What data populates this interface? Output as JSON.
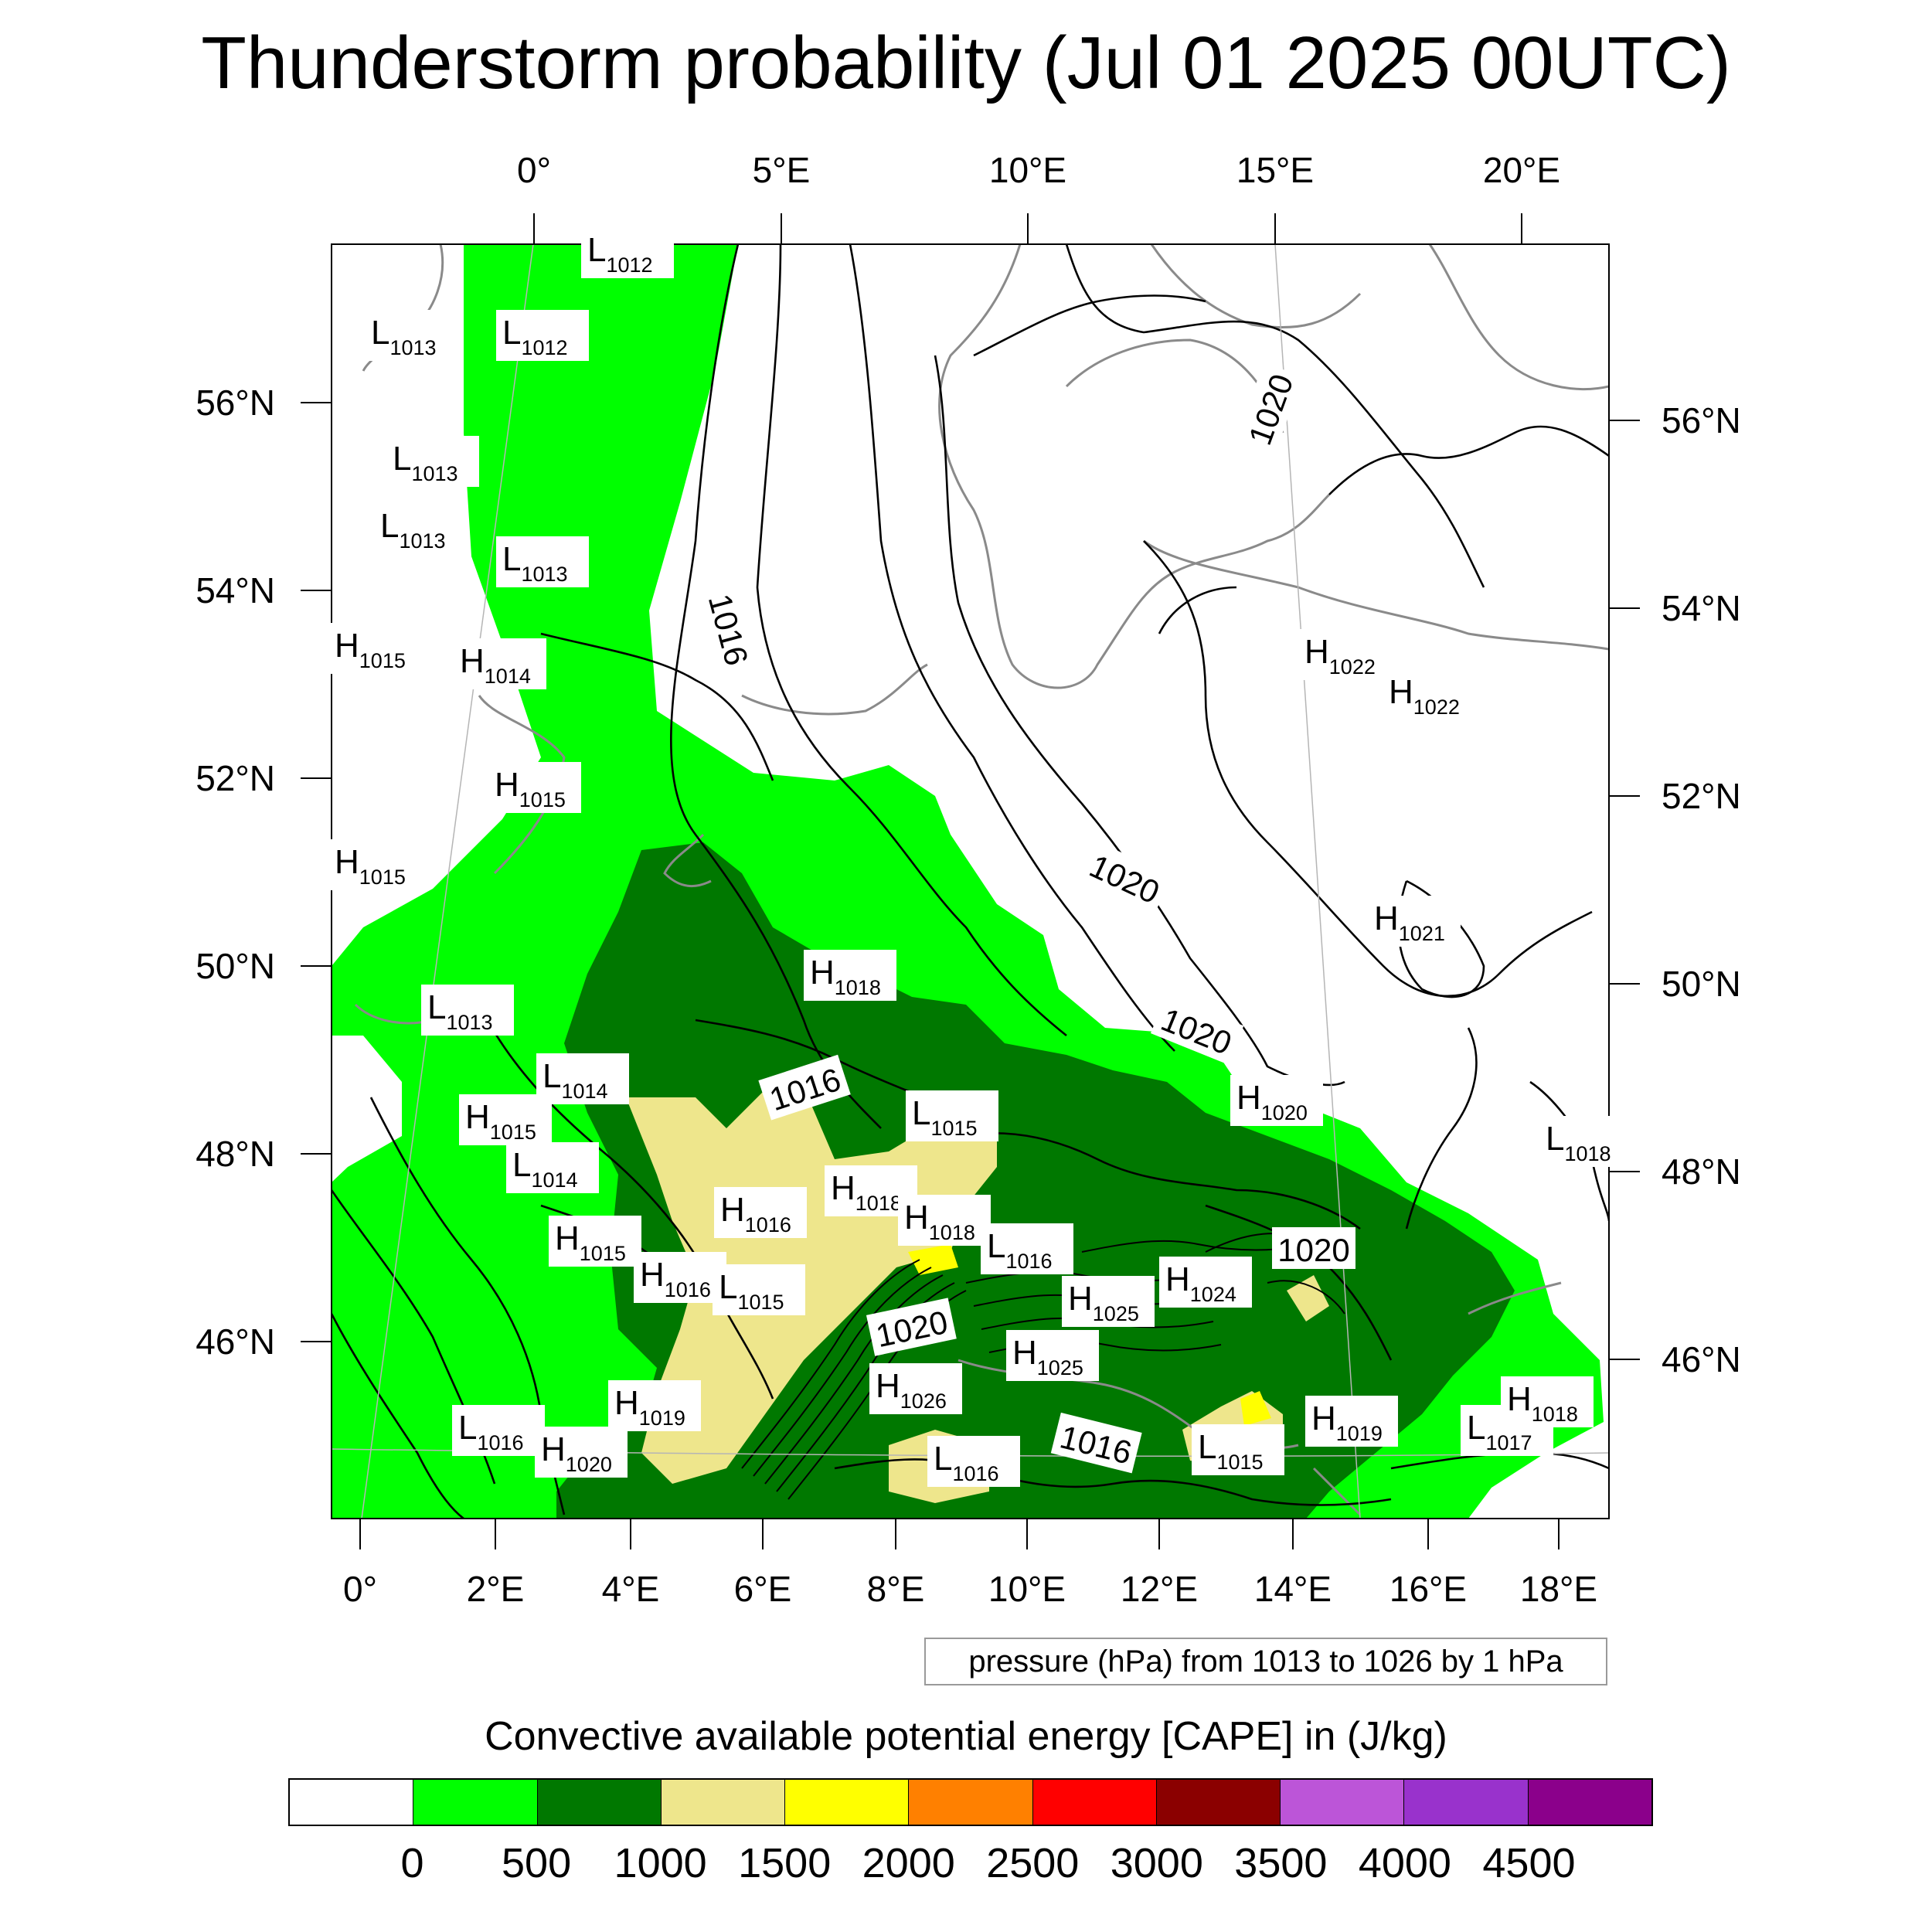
{
  "title": "Thunderstorm probability (Jul 01 2025 00UTC)",
  "top_lon_labels": [
    "0°",
    "5°E",
    "10°E",
    "15°E",
    "20°E"
  ],
  "bottom_lon_labels": [
    "0°",
    "2°E",
    "4°E",
    "6°E",
    "8°E",
    "10°E",
    "12°E",
    "14°E",
    "16°E",
    "18°E"
  ],
  "left_lat_labels": [
    "56°N",
    "54°N",
    "52°N",
    "50°N",
    "48°N",
    "46°N"
  ],
  "right_lat_labels": [
    "56°N",
    "54°N",
    "52°N",
    "50°N",
    "48°N",
    "46°N"
  ],
  "pressure_note": "pressure (hPa) from 1013 to 1026 by 1 hPa",
  "colorbar": {
    "title": "Convective available potential energy [CAPE] in (J/kg)",
    "colors": [
      "#ffffff",
      "#00ff00",
      "#007800",
      "#eee68c",
      "#ffff00",
      "#ff8000",
      "#ff0000",
      "#8b0000",
      "#bc55d8",
      "#9932cc",
      "#8b008b"
    ],
    "labels": [
      "0",
      "500",
      "1000",
      "1500",
      "2000",
      "2500",
      "3000",
      "3500",
      "4000",
      "4500"
    ]
  },
  "pressure_centers": [
    {
      "t": "L",
      "v": "1012"
    },
    {
      "t": "L",
      "v": "1013"
    },
    {
      "t": "L",
      "v": "1012"
    },
    {
      "t": "L",
      "v": "1013"
    },
    {
      "t": "L",
      "v": "1013"
    },
    {
      "t": "L",
      "v": "1013"
    },
    {
      "t": "H",
      "v": "1015"
    },
    {
      "t": "H",
      "v": "1014"
    },
    {
      "t": "H",
      "v": "1015"
    },
    {
      "t": "H",
      "v": "1015"
    },
    {
      "t": "L",
      "v": "1013"
    },
    {
      "t": "H",
      "v": "1018"
    },
    {
      "t": "L",
      "v": "1014"
    },
    {
      "t": "H",
      "v": "1015"
    },
    {
      "t": "L",
      "v": "1014"
    },
    {
      "t": "L",
      "v": "1015"
    },
    {
      "t": "H",
      "v": "1016"
    },
    {
      "t": "H",
      "v": "1018"
    },
    {
      "t": "H",
      "v": "1018"
    },
    {
      "t": "L",
      "v": "1016"
    },
    {
      "t": "H",
      "v": "1015"
    },
    {
      "t": "H",
      "v": "1016"
    },
    {
      "t": "L",
      "v": "1015"
    },
    {
      "t": "H",
      "v": "1025"
    },
    {
      "t": "H",
      "v": "1024"
    },
    {
      "t": "H",
      "v": "1025"
    },
    {
      "t": "H",
      "v": "1026"
    },
    {
      "t": "H",
      "v": "1019"
    },
    {
      "t": "L",
      "v": "1016"
    },
    {
      "t": "H",
      "v": "1020"
    },
    {
      "t": "L",
      "v": "1016"
    },
    {
      "t": "L",
      "v": "1015"
    },
    {
      "t": "H",
      "v": "1019"
    },
    {
      "t": "L",
      "v": "1017"
    },
    {
      "t": "H",
      "v": "1018"
    },
    {
      "t": "H",
      "v": "1022"
    },
    {
      "t": "H",
      "v": "1022"
    },
    {
      "t": "H",
      "v": "1021"
    },
    {
      "t": "H",
      "v": "1020"
    },
    {
      "t": "L",
      "v": "1018"
    }
  ],
  "isobar_labels": [
    "1016",
    "1020",
    "1020",
    "1020",
    "1016",
    "1020",
    "1020",
    "1016"
  ]
}
